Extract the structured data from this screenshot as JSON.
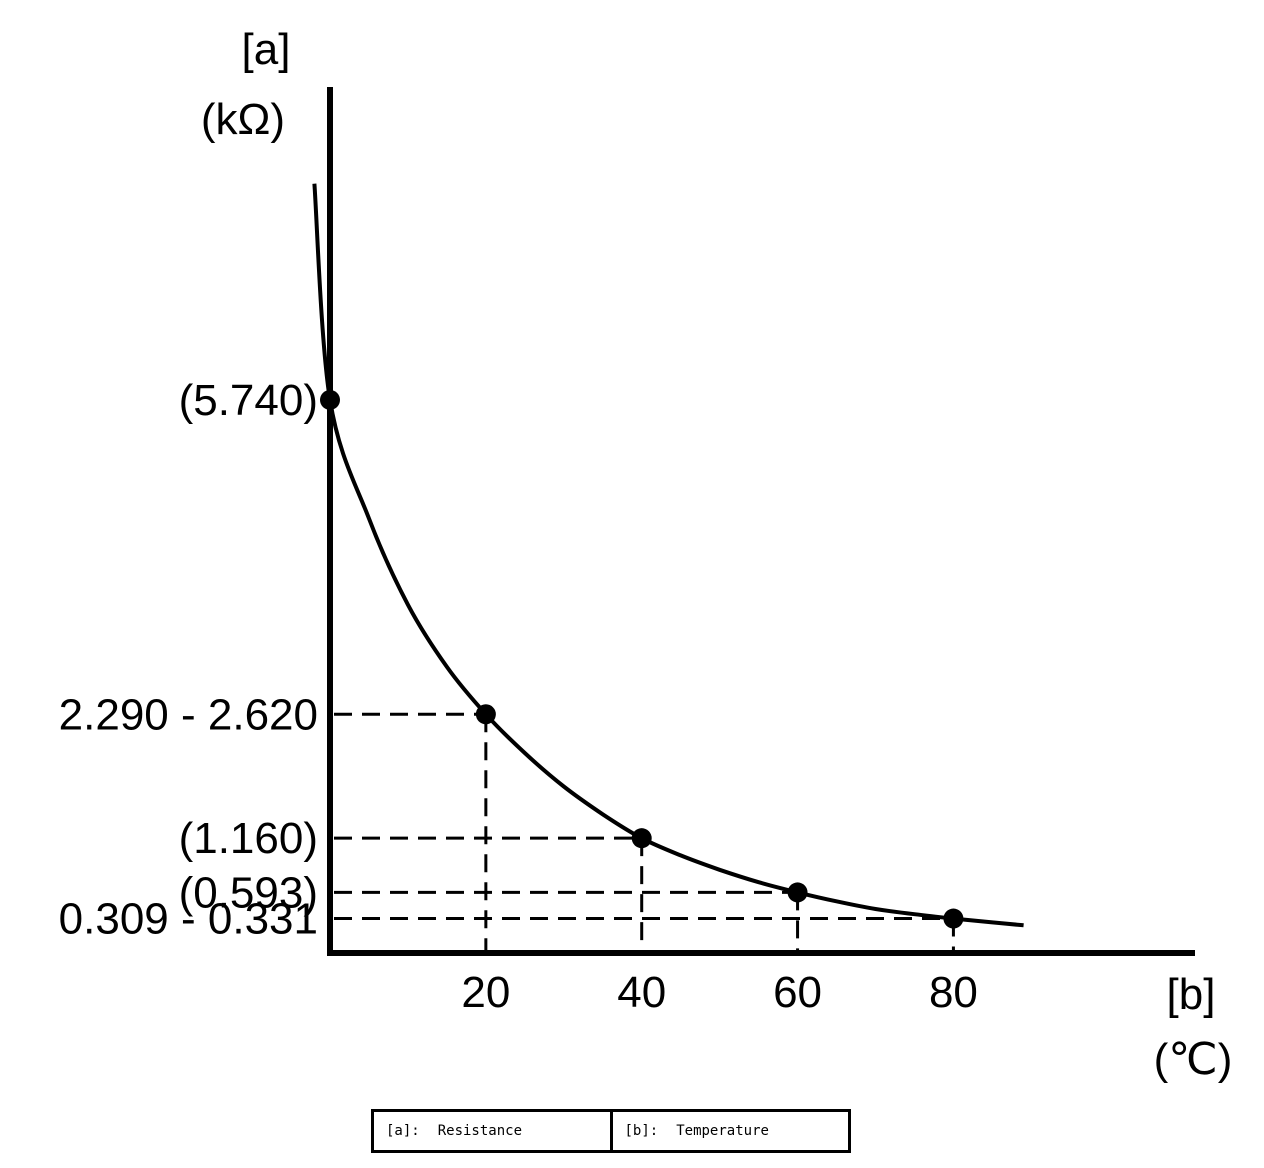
{
  "chart_data": {
    "type": "line",
    "ylabel": "[a]",
    "yunit": "(kΩ)",
    "xlabel": "[b]",
    "xunit": "(℃)",
    "x_ticks": [
      {
        "value": 20,
        "label": "20"
      },
      {
        "value": 40,
        "label": "40"
      },
      {
        "value": 60,
        "label": "60"
      },
      {
        "value": 80,
        "label": "80"
      }
    ],
    "y_ticks": [
      {
        "value": 5.74,
        "label": "(5.740)"
      },
      {
        "value": 2.455,
        "label": "2.290 - 2.620"
      },
      {
        "value": 1.16,
        "label": "(1.160)"
      },
      {
        "value": 0.593,
        "label": "(0.593)"
      },
      {
        "value": 0.32,
        "label": "0.309 - 0.331"
      }
    ],
    "points": [
      {
        "x": 0,
        "y": 5.74
      },
      {
        "x": 20,
        "y": 2.455
      },
      {
        "x": 40,
        "y": 1.16
      },
      {
        "x": 60,
        "y": 0.593
      },
      {
        "x": 80,
        "y": 0.32
      }
    ],
    "curve": [
      {
        "x": -2,
        "y": 8.0
      },
      {
        "x": 0,
        "y": 5.74
      },
      {
        "x": 5,
        "y": 4.5
      },
      {
        "x": 10,
        "y": 3.6
      },
      {
        "x": 15,
        "y": 2.95
      },
      {
        "x": 20,
        "y": 2.455
      },
      {
        "x": 25,
        "y": 2.05
      },
      {
        "x": 30,
        "y": 1.7
      },
      {
        "x": 35,
        "y": 1.41
      },
      {
        "x": 40,
        "y": 1.16
      },
      {
        "x": 45,
        "y": 0.98
      },
      {
        "x": 50,
        "y": 0.83
      },
      {
        "x": 55,
        "y": 0.7
      },
      {
        "x": 60,
        "y": 0.593
      },
      {
        "x": 65,
        "y": 0.5
      },
      {
        "x": 70,
        "y": 0.42
      },
      {
        "x": 75,
        "y": 0.365
      },
      {
        "x": 80,
        "y": 0.32
      },
      {
        "x": 85,
        "y": 0.28
      },
      {
        "x": 89,
        "y": 0.25
      }
    ],
    "xlim": [
      0,
      111
    ],
    "ylim": [
      -0.04,
      9.0
    ],
    "grid": false,
    "legend": [
      {
        "key": "[a]:",
        "text": "Resistance"
      },
      {
        "key": "[b]:",
        "text": "Temperature"
      }
    ]
  }
}
